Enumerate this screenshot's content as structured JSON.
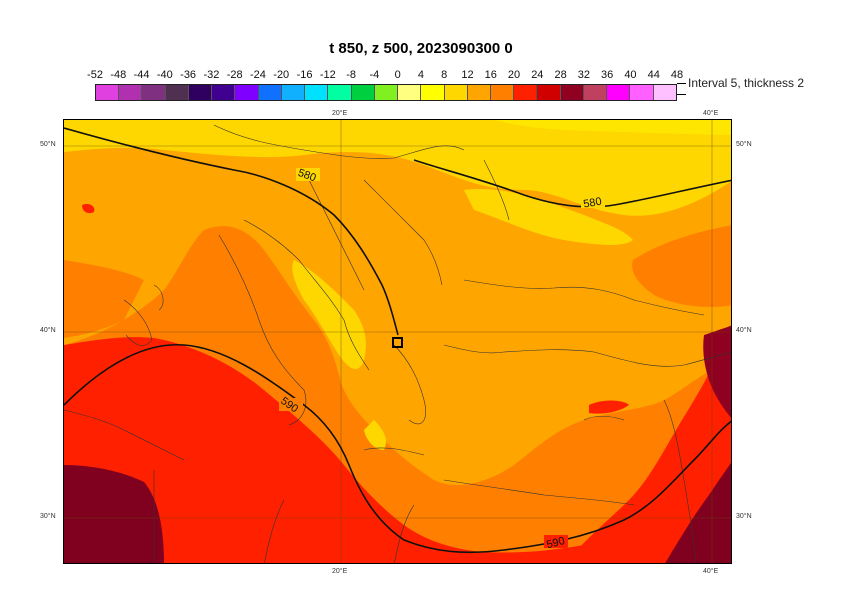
{
  "title": "t 850, z 500, 2023090300 0",
  "legend": {
    "labels": [
      "-52",
      "-48",
      "-44",
      "-40",
      "-36",
      "-32",
      "-28",
      "-24",
      "-20",
      "-16",
      "-12",
      "-8",
      "-4",
      "0",
      "4",
      "8",
      "12",
      "16",
      "20",
      "24",
      "28",
      "32",
      "36",
      "40",
      "44",
      "48"
    ],
    "colors": [
      "#e040e0",
      "#b030b0",
      "#803080",
      "#503050",
      "#300060",
      "#400090",
      "#8000ff",
      "#1070ff",
      "#10b0ff",
      "#00e0ff",
      "#00ffa0",
      "#00d040",
      "#80f020",
      "#ffff80",
      "#ffff00",
      "#ffd700",
      "#ffa500",
      "#ff8000",
      "#ff2000",
      "#d00000",
      "#900020",
      "#c04060",
      "#ff00ff",
      "#ff60ff",
      "#ffc0ff"
    ],
    "note": "Interval 5, thickness 2"
  },
  "map": {
    "lon_labels": [
      "20°E",
      "40°E"
    ],
    "lat_labels": [
      "50°N",
      "40°N",
      "30°N"
    ],
    "contours": [
      {
        "label": "580"
      },
      {
        "label": "580"
      },
      {
        "label": "590"
      },
      {
        "label": "590"
      }
    ],
    "fill_colors": {
      "yellow": "#ffd700",
      "orange": "#ffa500",
      "dark_orange": "#ff8000",
      "red": "#ff2000",
      "maroon": "#800020",
      "dark_red": "#d00000"
    }
  }
}
